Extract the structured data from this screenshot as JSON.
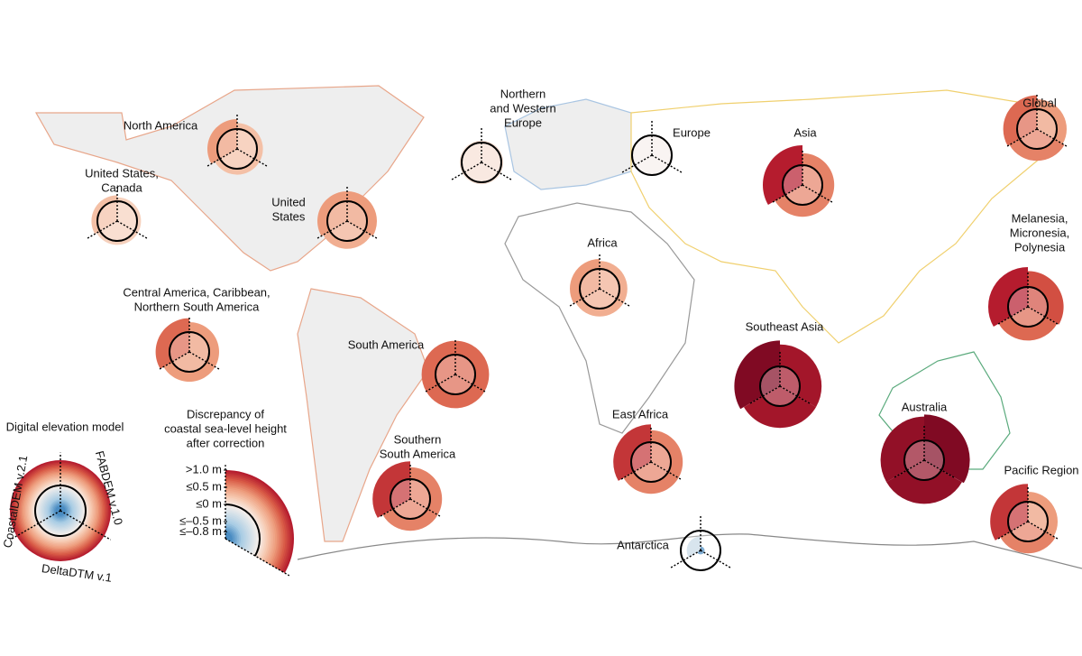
{
  "map_data": {
    "sectors": [
      "CoastalDEM v.2.1",
      "FABDEM v.1.0",
      "DeltaDTM v.1"
    ],
    "legend": {
      "title": "Digital elevation model",
      "scale_title": [
        "Discrepancy of",
        "coastal sea-level height",
        "after correction"
      ],
      "ticks": [
        {
          "value": 1.0,
          "label": ">1.0 m"
        },
        {
          "value": 0.5,
          "label": "≤0.5 m"
        },
        {
          "value": 0,
          "label": "≤0 m"
        },
        {
          "value": -0.5,
          "label": "≤–0.5 m"
        },
        {
          "value": -0.8,
          "label": "≤–0.8 m"
        }
      ],
      "colormap": [
        {
          "value": -0.8,
          "color": "#4a8cc2"
        },
        {
          "value": -0.5,
          "color": "#a8cce4"
        },
        {
          "value": 0,
          "color": "#f7f0ec"
        },
        {
          "value": 0.25,
          "color": "#f6c9b1"
        },
        {
          "value": 0.5,
          "color": "#ed9c7c"
        },
        {
          "value": 0.75,
          "color": "#d95c47"
        },
        {
          "value": 1.0,
          "color": "#b51c2e"
        },
        {
          "value": 1.4,
          "color": "#6e0420"
        }
      ]
    },
    "regions": [
      {
        "label": [
          "North America"
        ],
        "values": [
          0.5,
          0.3,
          0.3
        ]
      },
      {
        "label": [
          "United States,",
          "Canada"
        ],
        "values": [
          0.3,
          0.2,
          0.2
        ]
      },
      {
        "label": [
          "United",
          "States"
        ],
        "values": [
          0.5,
          0.5,
          0.4
        ]
      },
      {
        "label": [
          "Central America, Caribbean,",
          "Northern South America"
        ],
        "values": [
          0.7,
          0.5,
          0.5
        ]
      },
      {
        "label": [
          "South America"
        ],
        "values": [
          0.7,
          0.7,
          0.7
        ]
      },
      {
        "label": [
          "Southern",
          "South America"
        ],
        "values": [
          0.9,
          0.6,
          0.6
        ]
      },
      {
        "label": [
          "Northern",
          "and Western",
          "Europe"
        ],
        "values": [
          0.1,
          0.1,
          0.1
        ]
      },
      {
        "label": [
          "Europe"
        ],
        "values": [
          0.0,
          0.0,
          0.0
        ]
      },
      {
        "label": [
          "Africa"
        ],
        "values": [
          0.5,
          0.4,
          0.4
        ]
      },
      {
        "label": [
          "East Africa"
        ],
        "values": [
          0.9,
          0.6,
          0.6
        ]
      },
      {
        "label": [
          "Asia"
        ],
        "values": [
          1.0,
          0.6,
          0.6
        ]
      },
      {
        "label": [
          "Southeast Asia"
        ],
        "values": [
          1.3,
          1.1,
          1.1
        ]
      },
      {
        "label": [
          "Australia"
        ],
        "values": [
          1.2,
          1.3,
          1.2
        ]
      },
      {
        "label": [
          "Melanesia,",
          "Micronesia,",
          "Polynesia"
        ],
        "values": [
          1.0,
          0.8,
          0.7
        ]
      },
      {
        "label": [
          "Global"
        ],
        "values": [
          0.7,
          0.5,
          0.6
        ]
      },
      {
        "label": [
          "Pacific Region"
        ],
        "values": [
          0.9,
          0.5,
          0.6
        ]
      },
      {
        "label": [
          "Antarctica"
        ],
        "values": [
          -0.3,
          -0.8,
          -0.8
        ]
      }
    ]
  }
}
